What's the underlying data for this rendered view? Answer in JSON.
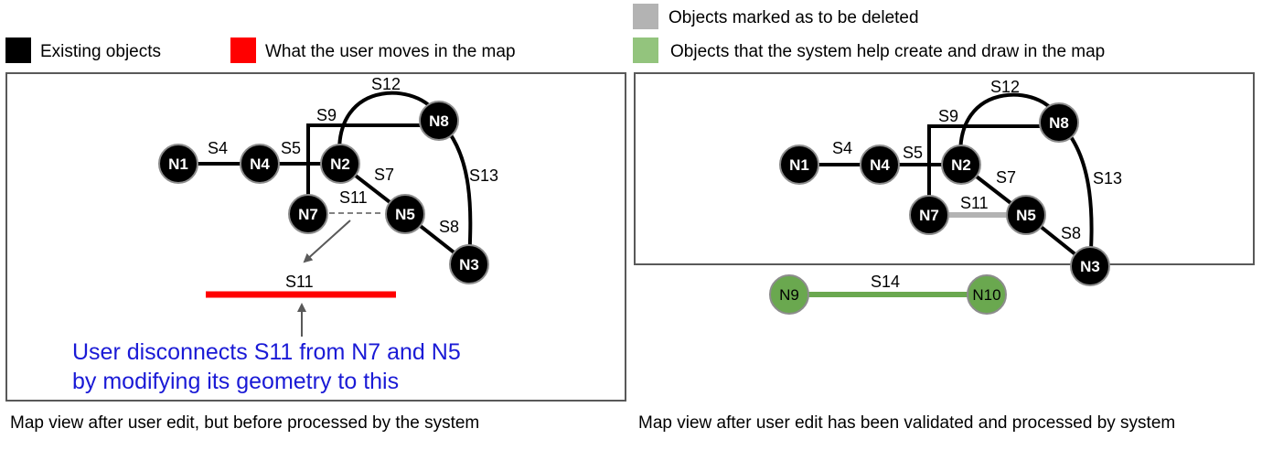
{
  "legend": {
    "existing": {
      "label": "Existing objects",
      "color": "#000000"
    },
    "moved": {
      "label": "What the user moves in the map",
      "color": "#ff0000"
    },
    "deleted": {
      "label": "Objects marked as to be deleted",
      "color": "#b3b3b3"
    },
    "created": {
      "label": "Objects that the system help create and draw in the map",
      "color": "#93c47d"
    }
  },
  "left_panel": {
    "nodes": {
      "n1": "N1",
      "n4": "N4",
      "n2": "N2",
      "n8": "N8",
      "n7": "N7",
      "n5": "N5",
      "n3": "N3"
    },
    "segments": {
      "s4": "S4",
      "s5": "S5",
      "s9": "S9",
      "s12": "S12",
      "s7": "S7",
      "s13": "S13",
      "s11": "S11",
      "s8": "S8",
      "s11_moved": "S11"
    },
    "note_line1": "User disconnects S11 from N7 and N5",
    "note_line2": "by modifying its geometry to this",
    "caption": "Map view after user edit, but before processed by the system"
  },
  "right_panel": {
    "nodes": {
      "n1": "N1",
      "n4": "N4",
      "n2": "N2",
      "n8": "N8",
      "n7": "N7",
      "n5": "N5",
      "n3": "N3",
      "n9": "N9",
      "n10": "N10"
    },
    "segments": {
      "s4": "S4",
      "s5": "S5",
      "s9": "S9",
      "s12": "S12",
      "s7": "S7",
      "s13": "S13",
      "s11": "S11",
      "s8": "S8",
      "s14": "S14"
    },
    "caption": "Map view after user edit has been validated and processed by system"
  },
  "colors": {
    "note_blue": "#1a1ad6",
    "arrow_gray": "#595959",
    "green_node": "#6aa84f",
    "green_line": "#6aa84f"
  }
}
